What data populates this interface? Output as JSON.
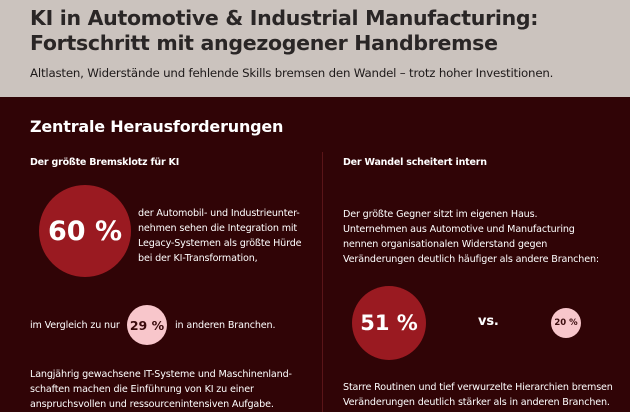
{
  "header": {
    "title_line1": "KI in Automotive & Industrial Manufacturing:",
    "title_line2": "Fortschritt mit angezogener Handbremse",
    "subtitle": "Altlasten, Widerstände und fehlende Skills bremsen den Wandel – trotz hoher Investitionen."
  },
  "section": {
    "title": "Zentrale Herausforderungen"
  },
  "left": {
    "heading": "Der größte Bremsklotz für KI",
    "main_stat": "60 %",
    "main_text": [
      "der Automobil- und Industrieunter-",
      "nehmen sehen die Integration mit",
      "Legacy-Systemen als größte Hürde",
      "bei der KI-Transformation,"
    ],
    "compare_before": "im Vergleich zu nur",
    "compare_stat": "29 %",
    "compare_after": "in anderen Branchen.",
    "footer": [
      "Langjährig gewachsene IT-Systeme und Maschinenland-",
      "schaften machen die Einführung von KI zu einer",
      "anspruchsvollen und ressourcenintensiven Aufgabe."
    ]
  },
  "right": {
    "heading": "Der Wandel scheitert intern",
    "intro": [
      "Der größte Gegner sitzt im eigenen Haus.",
      "Unternehmen aus Automotive und Manufacturing",
      "nennen organisationalen Widerstand gegen",
      "Veränderungen deutlich häufiger als andere Branchen:"
    ],
    "main_stat": "51 %",
    "vs": "vs.",
    "compare_stat": "20 %",
    "footer": [
      "Starre Routinen und tief verwurzelte Hierarchien bremsen",
      "Veränderungen deutlich stärker als in anderen Branchen."
    ]
  },
  "colors": {
    "header_bg": "#cbc3be",
    "body_bg": "#300406",
    "accent": "#9a1a21",
    "accent_light": "#f8c6cb"
  }
}
